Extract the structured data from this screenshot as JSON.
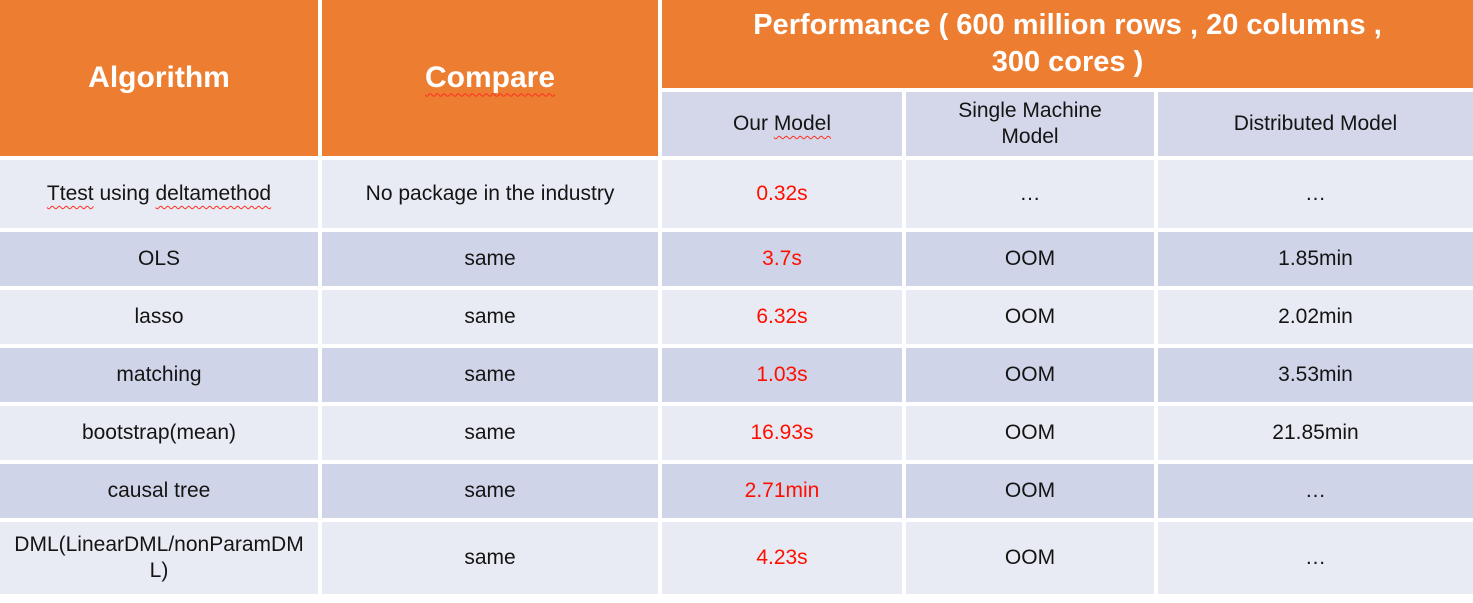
{
  "colors": {
    "header_orange": "#ED7D31",
    "band_light": "#E9EBF4",
    "band_dark": "#CFD4E8",
    "subheader_bg": "#D3D7E9",
    "highlight_red": "#FF0F00",
    "squiggle_red": "#FF2E1F",
    "text_dark": "#141414",
    "header_text": "#FFFFFF"
  },
  "table": {
    "header": {
      "algorithm": "Algorithm",
      "compare": "Compare",
      "performance": "Performance ( 600 million rows , 20 columns , 300 cores )",
      "sub_our_prefix": "Our ",
      "sub_our_word": "Model",
      "sub_single": "Single Machine Model",
      "sub_distributed": "Distributed Model"
    },
    "rows": [
      {
        "algorithm_word1": "Ttest",
        "algorithm_middle": " using ",
        "algorithm_word2": "deltamethod",
        "compare": "No package in the industry",
        "our_model": "0.32s",
        "single_machine": "…",
        "distributed": "…"
      },
      {
        "algorithm": "OLS",
        "compare": "same",
        "our_model": "3.7s",
        "single_machine": "OOM",
        "distributed": "1.85min"
      },
      {
        "algorithm": "lasso",
        "compare": "same",
        "our_model": "6.32s",
        "single_machine": "OOM",
        "distributed": "2.02min"
      },
      {
        "algorithm": "matching",
        "compare": "same",
        "our_model": "1.03s",
        "single_machine": "OOM",
        "distributed": "3.53min"
      },
      {
        "algorithm": "bootstrap(mean)",
        "compare": "same",
        "our_model": "16.93s",
        "single_machine": "OOM",
        "distributed": "21.85min"
      },
      {
        "algorithm": "causal tree",
        "compare": "same",
        "our_model": "2.71min",
        "single_machine": "OOM",
        "distributed": "…"
      },
      {
        "algorithm": "DML(LinearDML/nonParamDML)",
        "compare": "same",
        "our_model": "4.23s",
        "single_machine": "OOM",
        "distributed": "…"
      }
    ]
  }
}
